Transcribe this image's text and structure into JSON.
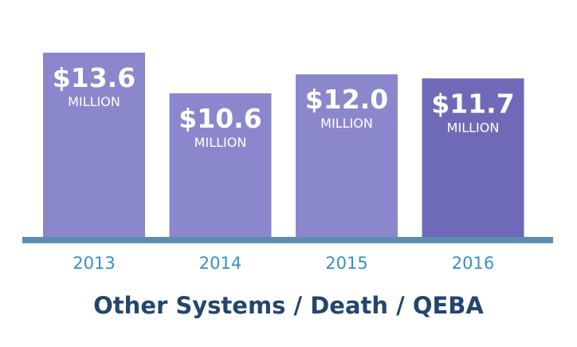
{
  "chart_data": {
    "type": "bar",
    "title": "Other Systems / Death / QEBA",
    "categories": [
      "2013",
      "2014",
      "2015",
      "2016"
    ],
    "values": [
      13.6,
      10.6,
      12.0,
      11.7
    ],
    "value_labels": [
      "$13.6",
      "$10.6",
      "$12.0",
      "$11.7"
    ],
    "unit_label": "MILLION",
    "ylim": [
      0,
      13.6
    ],
    "grid": false,
    "colors": {
      "bars": [
        "#8b87cc",
        "#8b87cc",
        "#8b87cc",
        "#6f6ab8"
      ],
      "baseline": "#5b8fb0",
      "category_text": "#3a8ec6",
      "title_text": "#24466e",
      "label_text": "#ffffff"
    }
  }
}
